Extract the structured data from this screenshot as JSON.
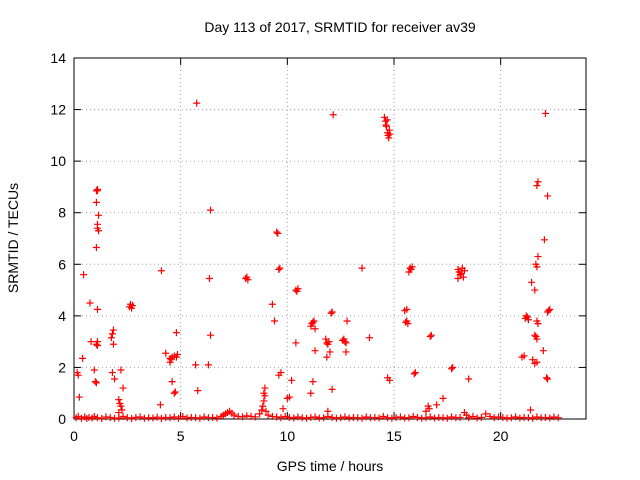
{
  "chart_data": {
    "type": "scatter",
    "title": "Day 113 of 2017, SRMTID for receiver av39",
    "xlabel": "GPS time / hours",
    "ylabel": "SRMTID / TECUs",
    "xlim": [
      0,
      24
    ],
    "ylim": [
      0,
      14
    ],
    "xticks": [
      0,
      5,
      10,
      15,
      20
    ],
    "yticks": [
      0,
      2,
      4,
      6,
      8,
      10,
      12,
      14
    ],
    "grid": true,
    "marker": "+",
    "color": "#ff0000",
    "series": [
      {
        "name": "SRMTID",
        "points": [
          [
            0.1,
            0.05
          ],
          [
            0.2,
            0.1
          ],
          [
            0.35,
            0.03
          ],
          [
            0.5,
            0.08
          ],
          [
            0.6,
            0.02
          ],
          [
            0.7,
            0.06
          ],
          [
            0.85,
            0.04
          ],
          [
            0.95,
            0.1
          ],
          [
            1.1,
            0.05
          ],
          [
            1.3,
            0.02
          ],
          [
            1.5,
            0.08
          ],
          [
            1.7,
            0.06
          ],
          [
            1.9,
            0.03
          ],
          [
            2.1,
            0.04
          ],
          [
            2.3,
            0.1
          ],
          [
            2.5,
            0.05
          ],
          [
            2.7,
            0.02
          ],
          [
            2.9,
            0.06
          ],
          [
            3.1,
            0.08
          ],
          [
            3.3,
            0.03
          ],
          [
            3.5,
            0.05
          ],
          [
            3.7,
            0.04
          ],
          [
            3.9,
            0.07
          ],
          [
            4.1,
            0.02
          ],
          [
            4.3,
            0.06
          ],
          [
            4.5,
            0.05
          ],
          [
            4.7,
            0.08
          ],
          [
            4.9,
            0.03
          ],
          [
            5.1,
            0.1
          ],
          [
            5.3,
            0.04
          ],
          [
            5.5,
            0.06
          ],
          [
            5.7,
            0.05
          ],
          [
            5.9,
            0.03
          ],
          [
            6.1,
            0.08
          ],
          [
            6.3,
            0.05
          ],
          [
            6.5,
            0.06
          ],
          [
            6.7,
            0.04
          ],
          [
            6.9,
            0.1
          ],
          [
            7.0,
            0.15
          ],
          [
            7.1,
            0.2
          ],
          [
            7.2,
            0.25
          ],
          [
            7.3,
            0.3
          ],
          [
            7.4,
            0.22
          ],
          [
            7.5,
            0.15
          ],
          [
            7.7,
            0.1
          ],
          [
            7.9,
            0.08
          ],
          [
            8.1,
            0.12
          ],
          [
            8.3,
            0.1
          ],
          [
            8.5,
            0.08
          ],
          [
            8.7,
            0.2
          ],
          [
            8.8,
            0.35
          ],
          [
            8.85,
            0.5
          ],
          [
            8.9,
            0.7
          ],
          [
            8.95,
            0.9
          ],
          [
            9.0,
            0.3
          ],
          [
            9.1,
            0.15
          ],
          [
            9.3,
            0.1
          ],
          [
            9.5,
            0.08
          ],
          [
            9.7,
            0.05
          ],
          [
            9.9,
            0.1
          ],
          [
            10.1,
            0.06
          ],
          [
            10.3,
            0.04
          ],
          [
            10.5,
            0.08
          ],
          [
            10.7,
            0.05
          ],
          [
            10.9,
            0.03
          ],
          [
            11.1,
            0.06
          ],
          [
            11.3,
            0.08
          ],
          [
            11.5,
            0.04
          ],
          [
            11.7,
            0.05
          ],
          [
            11.9,
            0.1
          ],
          [
            12.1,
            0.06
          ],
          [
            12.3,
            0.03
          ],
          [
            12.5,
            0.05
          ],
          [
            12.7,
            0.08
          ],
          [
            12.9,
            0.04
          ],
          [
            13.1,
            0.06
          ],
          [
            13.3,
            0.05
          ],
          [
            13.5,
            0.03
          ],
          [
            13.7,
            0.08
          ],
          [
            13.9,
            0.05
          ],
          [
            14.1,
            0.06
          ],
          [
            14.3,
            0.04
          ],
          [
            14.5,
            0.1
          ],
          [
            14.7,
            0.05
          ],
          [
            14.9,
            0.03
          ],
          [
            15.1,
            0.06
          ],
          [
            15.3,
            0.08
          ],
          [
            15.5,
            0.04
          ],
          [
            15.7,
            0.05
          ],
          [
            15.9,
            0.1
          ],
          [
            16.1,
            0.06
          ],
          [
            16.3,
            0.03
          ],
          [
            16.5,
            0.05
          ],
          [
            16.7,
            0.08
          ],
          [
            16.9,
            0.04
          ],
          [
            17.1,
            0.06
          ],
          [
            17.3,
            0.05
          ],
          [
            17.5,
            0.03
          ],
          [
            17.7,
            0.08
          ],
          [
            17.9,
            0.05
          ],
          [
            18.1,
            0.06
          ],
          [
            18.3,
            0.25
          ],
          [
            18.4,
            0.15
          ],
          [
            18.5,
            0.05
          ],
          [
            18.7,
            0.1
          ],
          [
            18.9,
            0.04
          ],
          [
            19.1,
            0.06
          ],
          [
            19.3,
            0.2
          ],
          [
            19.5,
            0.1
          ],
          [
            19.7,
            0.05
          ],
          [
            19.9,
            0.08
          ],
          [
            20.1,
            0.06
          ],
          [
            20.3,
            0.03
          ],
          [
            20.5,
            0.05
          ],
          [
            20.7,
            0.08
          ],
          [
            20.9,
            0.04
          ],
          [
            21.1,
            0.06
          ],
          [
            21.3,
            0.05
          ],
          [
            21.5,
            0.03
          ],
          [
            21.7,
            0.08
          ],
          [
            21.9,
            0.05
          ],
          [
            22.1,
            0.06
          ],
          [
            22.3,
            0.04
          ],
          [
            22.5,
            0.08
          ],
          [
            22.7,
            0.05
          ],
          [
            0.15,
            1.8
          ],
          [
            0.2,
            1.7
          ],
          [
            0.25,
            0.85
          ],
          [
            0.4,
            2.35
          ],
          [
            0.45,
            5.6
          ],
          [
            0.75,
            4.5
          ],
          [
            0.8,
            3.0
          ],
          [
            0.95,
            1.9
          ],
          [
            1.0,
            1.45
          ],
          [
            1.05,
            1.4
          ],
          [
            1.05,
            2.9
          ],
          [
            1.1,
            2.85
          ],
          [
            1.1,
            3.0
          ],
          [
            1.1,
            4.25
          ],
          [
            1.05,
            6.65
          ],
          [
            1.1,
            7.4
          ],
          [
            1.1,
            7.55
          ],
          [
            1.15,
            7.3
          ],
          [
            1.15,
            7.9
          ],
          [
            1.05,
            8.4
          ],
          [
            1.1,
            8.85
          ],
          [
            1.1,
            8.9
          ],
          [
            1.05,
            8.85
          ],
          [
            1.8,
            3.3
          ],
          [
            1.85,
            3.45
          ],
          [
            1.75,
            3.15
          ],
          [
            1.85,
            2.9
          ],
          [
            1.8,
            1.8
          ],
          [
            1.9,
            1.55
          ],
          [
            2.2,
            1.9
          ],
          [
            2.1,
            0.75
          ],
          [
            2.15,
            0.6
          ],
          [
            2.2,
            0.5
          ],
          [
            2.25,
            0.35
          ],
          [
            2.3,
            1.2
          ],
          [
            2.1,
            0.25
          ],
          [
            2.6,
            4.35
          ],
          [
            2.65,
            4.45
          ],
          [
            2.7,
            4.3
          ],
          [
            2.75,
            4.4
          ],
          [
            4.05,
            0.55
          ],
          [
            4.1,
            5.75
          ],
          [
            4.3,
            2.55
          ],
          [
            4.5,
            2.35
          ],
          [
            4.55,
            2.3
          ],
          [
            4.6,
            2.4
          ],
          [
            4.7,
            2.45
          ],
          [
            4.8,
            2.4
          ],
          [
            4.85,
            2.5
          ],
          [
            4.5,
            2.2
          ],
          [
            4.6,
            1.45
          ],
          [
            4.7,
            1.0
          ],
          [
            4.75,
            1.05
          ],
          [
            4.8,
            3.35
          ],
          [
            5.75,
            12.25
          ],
          [
            5.7,
            2.1
          ],
          [
            5.8,
            1.1
          ],
          [
            6.4,
            8.1
          ],
          [
            6.35,
            5.45
          ],
          [
            6.4,
            3.25
          ],
          [
            6.3,
            2.1
          ],
          [
            8.05,
            5.45
          ],
          [
            8.1,
            5.5
          ],
          [
            8.15,
            5.4
          ],
          [
            8.9,
            1.0
          ],
          [
            8.95,
            1.2
          ],
          [
            9.3,
            4.45
          ],
          [
            9.4,
            3.8
          ],
          [
            9.5,
            7.25
          ],
          [
            9.55,
            7.2
          ],
          [
            9.6,
            5.8
          ],
          [
            9.65,
            5.85
          ],
          [
            9.7,
            1.8
          ],
          [
            9.6,
            1.7
          ],
          [
            9.8,
            0.4
          ],
          [
            10.0,
            0.8
          ],
          [
            10.1,
            0.85
          ],
          [
            10.2,
            1.5
          ],
          [
            10.4,
            2.95
          ],
          [
            10.4,
            5.0
          ],
          [
            10.5,
            5.05
          ],
          [
            10.45,
            4.95
          ],
          [
            11.1,
            3.6
          ],
          [
            11.15,
            3.7
          ],
          [
            11.2,
            3.75
          ],
          [
            11.25,
            3.8
          ],
          [
            11.3,
            3.5
          ],
          [
            11.1,
            1.0
          ],
          [
            11.2,
            1.45
          ],
          [
            11.3,
            2.65
          ],
          [
            11.8,
            3.1
          ],
          [
            11.85,
            2.95
          ],
          [
            11.9,
            2.9
          ],
          [
            11.95,
            3.0
          ],
          [
            12.0,
            2.6
          ],
          [
            11.85,
            2.4
          ],
          [
            11.9,
            0.3
          ],
          [
            12.1,
            1.15
          ],
          [
            12.05,
            4.1
          ],
          [
            12.1,
            4.15
          ],
          [
            12.15,
            11.8
          ],
          [
            12.6,
            3.05
          ],
          [
            12.65,
            3.1
          ],
          [
            12.7,
            3.0
          ],
          [
            12.75,
            2.95
          ],
          [
            12.8,
            3.8
          ],
          [
            12.75,
            2.6
          ],
          [
            13.5,
            5.85
          ],
          [
            13.85,
            3.15
          ],
          [
            14.55,
            11.7
          ],
          [
            14.6,
            11.55
          ],
          [
            14.62,
            11.4
          ],
          [
            14.65,
            11.35
          ],
          [
            14.7,
            11.1
          ],
          [
            14.72,
            11.0
          ],
          [
            14.75,
            10.9
          ],
          [
            14.8,
            11.05
          ],
          [
            14.78,
            11.2
          ],
          [
            14.68,
            11.6
          ],
          [
            14.7,
            1.6
          ],
          [
            14.8,
            1.5
          ],
          [
            15.5,
            4.2
          ],
          [
            15.6,
            4.25
          ],
          [
            15.55,
            3.75
          ],
          [
            15.65,
            3.7
          ],
          [
            15.6,
            3.8
          ],
          [
            15.7,
            5.7
          ],
          [
            15.75,
            5.85
          ],
          [
            15.8,
            5.8
          ],
          [
            15.85,
            5.9
          ],
          [
            16.0,
            1.8
          ],
          [
            15.95,
            1.75
          ],
          [
            16.5,
            0.3
          ],
          [
            16.6,
            0.5
          ],
          [
            16.65,
            0.4
          ],
          [
            16.7,
            3.2
          ],
          [
            16.75,
            3.25
          ],
          [
            17.0,
            0.55
          ],
          [
            17.3,
            0.8
          ],
          [
            17.7,
            1.95
          ],
          [
            17.75,
            2.0
          ],
          [
            18.0,
            5.8
          ],
          [
            18.05,
            5.7
          ],
          [
            18.1,
            5.6
          ],
          [
            18.15,
            5.65
          ],
          [
            18.2,
            5.85
          ],
          [
            18.25,
            5.5
          ],
          [
            18.3,
            5.75
          ],
          [
            18.0,
            5.45
          ],
          [
            18.5,
            1.55
          ],
          [
            21.0,
            2.4
          ],
          [
            21.1,
            2.45
          ],
          [
            21.2,
            4.0
          ],
          [
            21.25,
            3.95
          ],
          [
            21.3,
            3.85
          ],
          [
            21.15,
            3.9
          ],
          [
            21.4,
            0.35
          ],
          [
            21.5,
            2.3
          ],
          [
            21.6,
            3.25
          ],
          [
            21.65,
            3.2
          ],
          [
            21.7,
            3.1
          ],
          [
            21.6,
            2.15
          ],
          [
            21.7,
            2.2
          ],
          [
            21.45,
            5.3
          ],
          [
            21.6,
            5.0
          ],
          [
            21.7,
            5.9
          ],
          [
            21.75,
            6.3
          ],
          [
            21.65,
            6.0
          ],
          [
            21.7,
            9.05
          ],
          [
            21.75,
            9.2
          ],
          [
            21.7,
            3.8
          ],
          [
            21.75,
            3.7
          ],
          [
            22.0,
            2.65
          ],
          [
            22.05,
            6.95
          ],
          [
            22.1,
            11.85
          ],
          [
            22.15,
            1.6
          ],
          [
            22.2,
            1.55
          ],
          [
            22.2,
            4.15
          ],
          [
            22.25,
            4.2
          ],
          [
            22.3,
            4.25
          ],
          [
            22.2,
            8.65
          ]
        ]
      }
    ]
  }
}
